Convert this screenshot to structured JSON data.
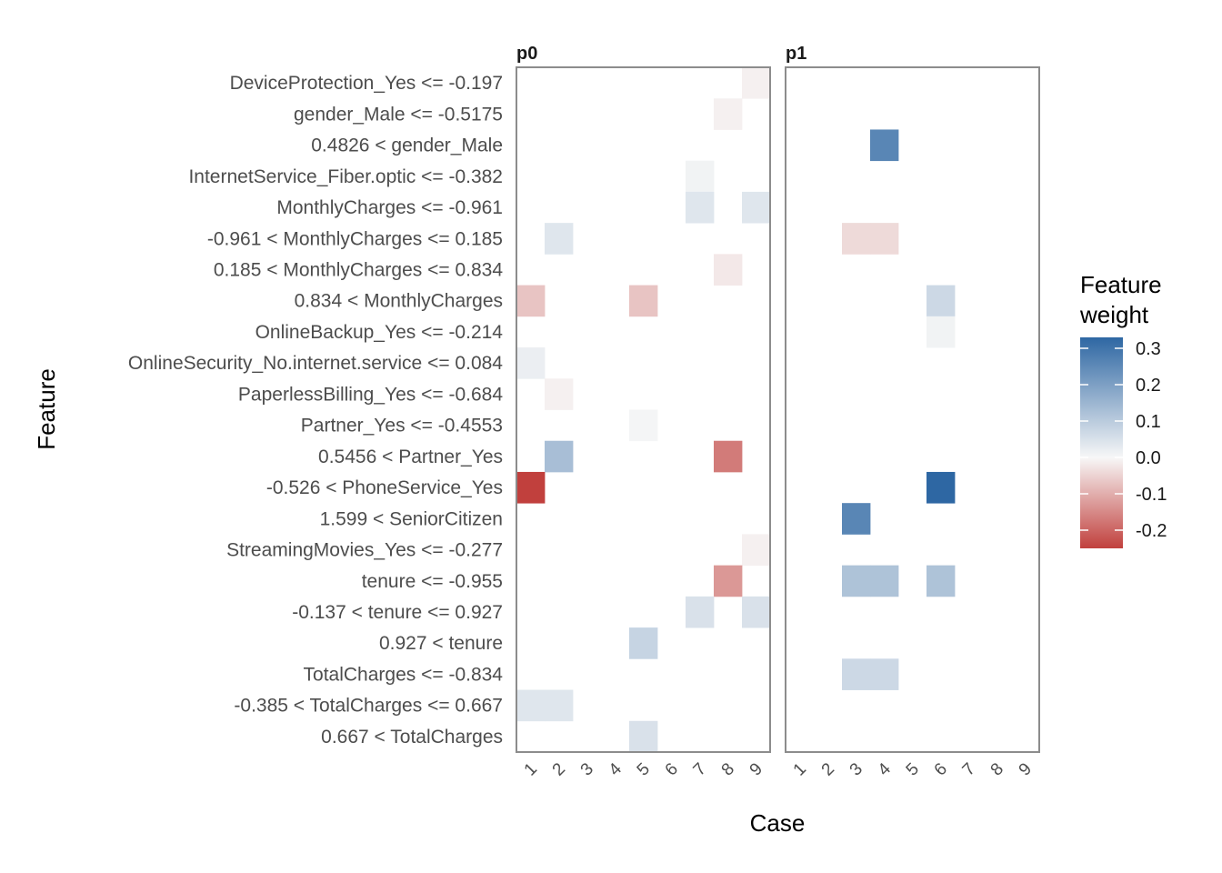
{
  "chart_data": {
    "type": "heatmap",
    "xlabel": "Case",
    "ylabel": "Feature",
    "legend_title": [
      "Feature",
      "weight"
    ],
    "legend_placement": "right",
    "legend_ticks": [
      0.3,
      0.2,
      0.1,
      0.0,
      -0.1,
      -0.2
    ],
    "legend_tick_labels": [
      "0.3",
      "0.2",
      "0.1",
      "0.0",
      "-0.1",
      "-0.2"
    ],
    "color_range": [
      -0.25,
      0.33
    ],
    "colors": {
      "low": "#c1403d",
      "mid": "#f7f7f7",
      "high": "#2e67a3"
    },
    "cases": [
      1,
      2,
      3,
      4,
      5,
      6,
      7,
      8,
      9
    ],
    "case_labels": [
      "1",
      "2",
      "3",
      "4",
      "5",
      "6",
      "7",
      "8",
      "9"
    ],
    "features": [
      "DeviceProtection_Yes <= -0.197",
      "gender_Male <= -0.5175",
      "0.4826 < gender_Male",
      "InternetService_Fiber.optic <= -0.382",
      "MonthlyCharges <= -0.961",
      "-0.961 < MonthlyCharges <= 0.185",
      "0.185 < MonthlyCharges <= 0.834",
      "0.834 < MonthlyCharges",
      "OnlineBackup_Yes <= -0.214",
      "OnlineSecurity_No.internet.service <= 0.084",
      "PaperlessBilling_Yes <= -0.684",
      "Partner_Yes <= -0.4553",
      "0.5456 < Partner_Yes",
      "-0.526 < PhoneService_Yes",
      "1.599 < SeniorCitizen",
      "StreamingMovies_Yes <= -0.277",
      "tenure <= -0.955",
      "-0.137 < tenure <= 0.927",
      "0.927 < tenure",
      "TotalCharges <= -0.834",
      "-0.385 < TotalCharges <= 0.667",
      "0.667 < TotalCharges"
    ],
    "panels": [
      {
        "name": "p0",
        "cells": [
          {
            "case": 9,
            "feature": 0,
            "value": -0.01
          },
          {
            "case": 8,
            "feature": 1,
            "value": -0.01
          },
          {
            "case": 7,
            "feature": 3,
            "value": 0.01
          },
          {
            "case": 7,
            "feature": 4,
            "value": 0.04
          },
          {
            "case": 9,
            "feature": 4,
            "value": 0.04
          },
          {
            "case": 2,
            "feature": 5,
            "value": 0.04
          },
          {
            "case": 8,
            "feature": 6,
            "value": -0.02
          },
          {
            "case": 1,
            "feature": 7,
            "value": -0.07
          },
          {
            "case": 5,
            "feature": 7,
            "value": -0.07
          },
          {
            "case": 1,
            "feature": 9,
            "value": 0.02
          },
          {
            "case": 2,
            "feature": 10,
            "value": -0.01
          },
          {
            "case": 5,
            "feature": 11,
            "value": 0.005
          },
          {
            "case": 2,
            "feature": 12,
            "value": 0.13
          },
          {
            "case": 8,
            "feature": 12,
            "value": -0.17
          },
          {
            "case": 1,
            "feature": 13,
            "value": -0.25
          },
          {
            "case": 9,
            "feature": 15,
            "value": -0.01
          },
          {
            "case": 8,
            "feature": 16,
            "value": -0.13
          },
          {
            "case": 7,
            "feature": 17,
            "value": 0.05
          },
          {
            "case": 9,
            "feature": 17,
            "value": 0.05
          },
          {
            "case": 5,
            "feature": 18,
            "value": 0.08
          },
          {
            "case": 1,
            "feature": 20,
            "value": 0.04
          },
          {
            "case": 2,
            "feature": 20,
            "value": 0.04
          },
          {
            "case": 5,
            "feature": 21,
            "value": 0.05
          }
        ]
      },
      {
        "name": "p1",
        "cells": [
          {
            "case": 4,
            "feature": 2,
            "value": 0.26
          },
          {
            "case": 3,
            "feature": 5,
            "value": -0.04
          },
          {
            "case": 4,
            "feature": 5,
            "value": -0.04
          },
          {
            "case": 6,
            "feature": 7,
            "value": 0.07
          },
          {
            "case": 6,
            "feature": 8,
            "value": 0.01
          },
          {
            "case": 6,
            "feature": 13,
            "value": 0.33
          },
          {
            "case": 3,
            "feature": 14,
            "value": 0.26
          },
          {
            "case": 3,
            "feature": 16,
            "value": 0.12
          },
          {
            "case": 4,
            "feature": 16,
            "value": 0.12
          },
          {
            "case": 6,
            "feature": 16,
            "value": 0.12
          },
          {
            "case": 3,
            "feature": 19,
            "value": 0.07
          },
          {
            "case": 4,
            "feature": 19,
            "value": 0.07
          }
        ]
      }
    ]
  }
}
